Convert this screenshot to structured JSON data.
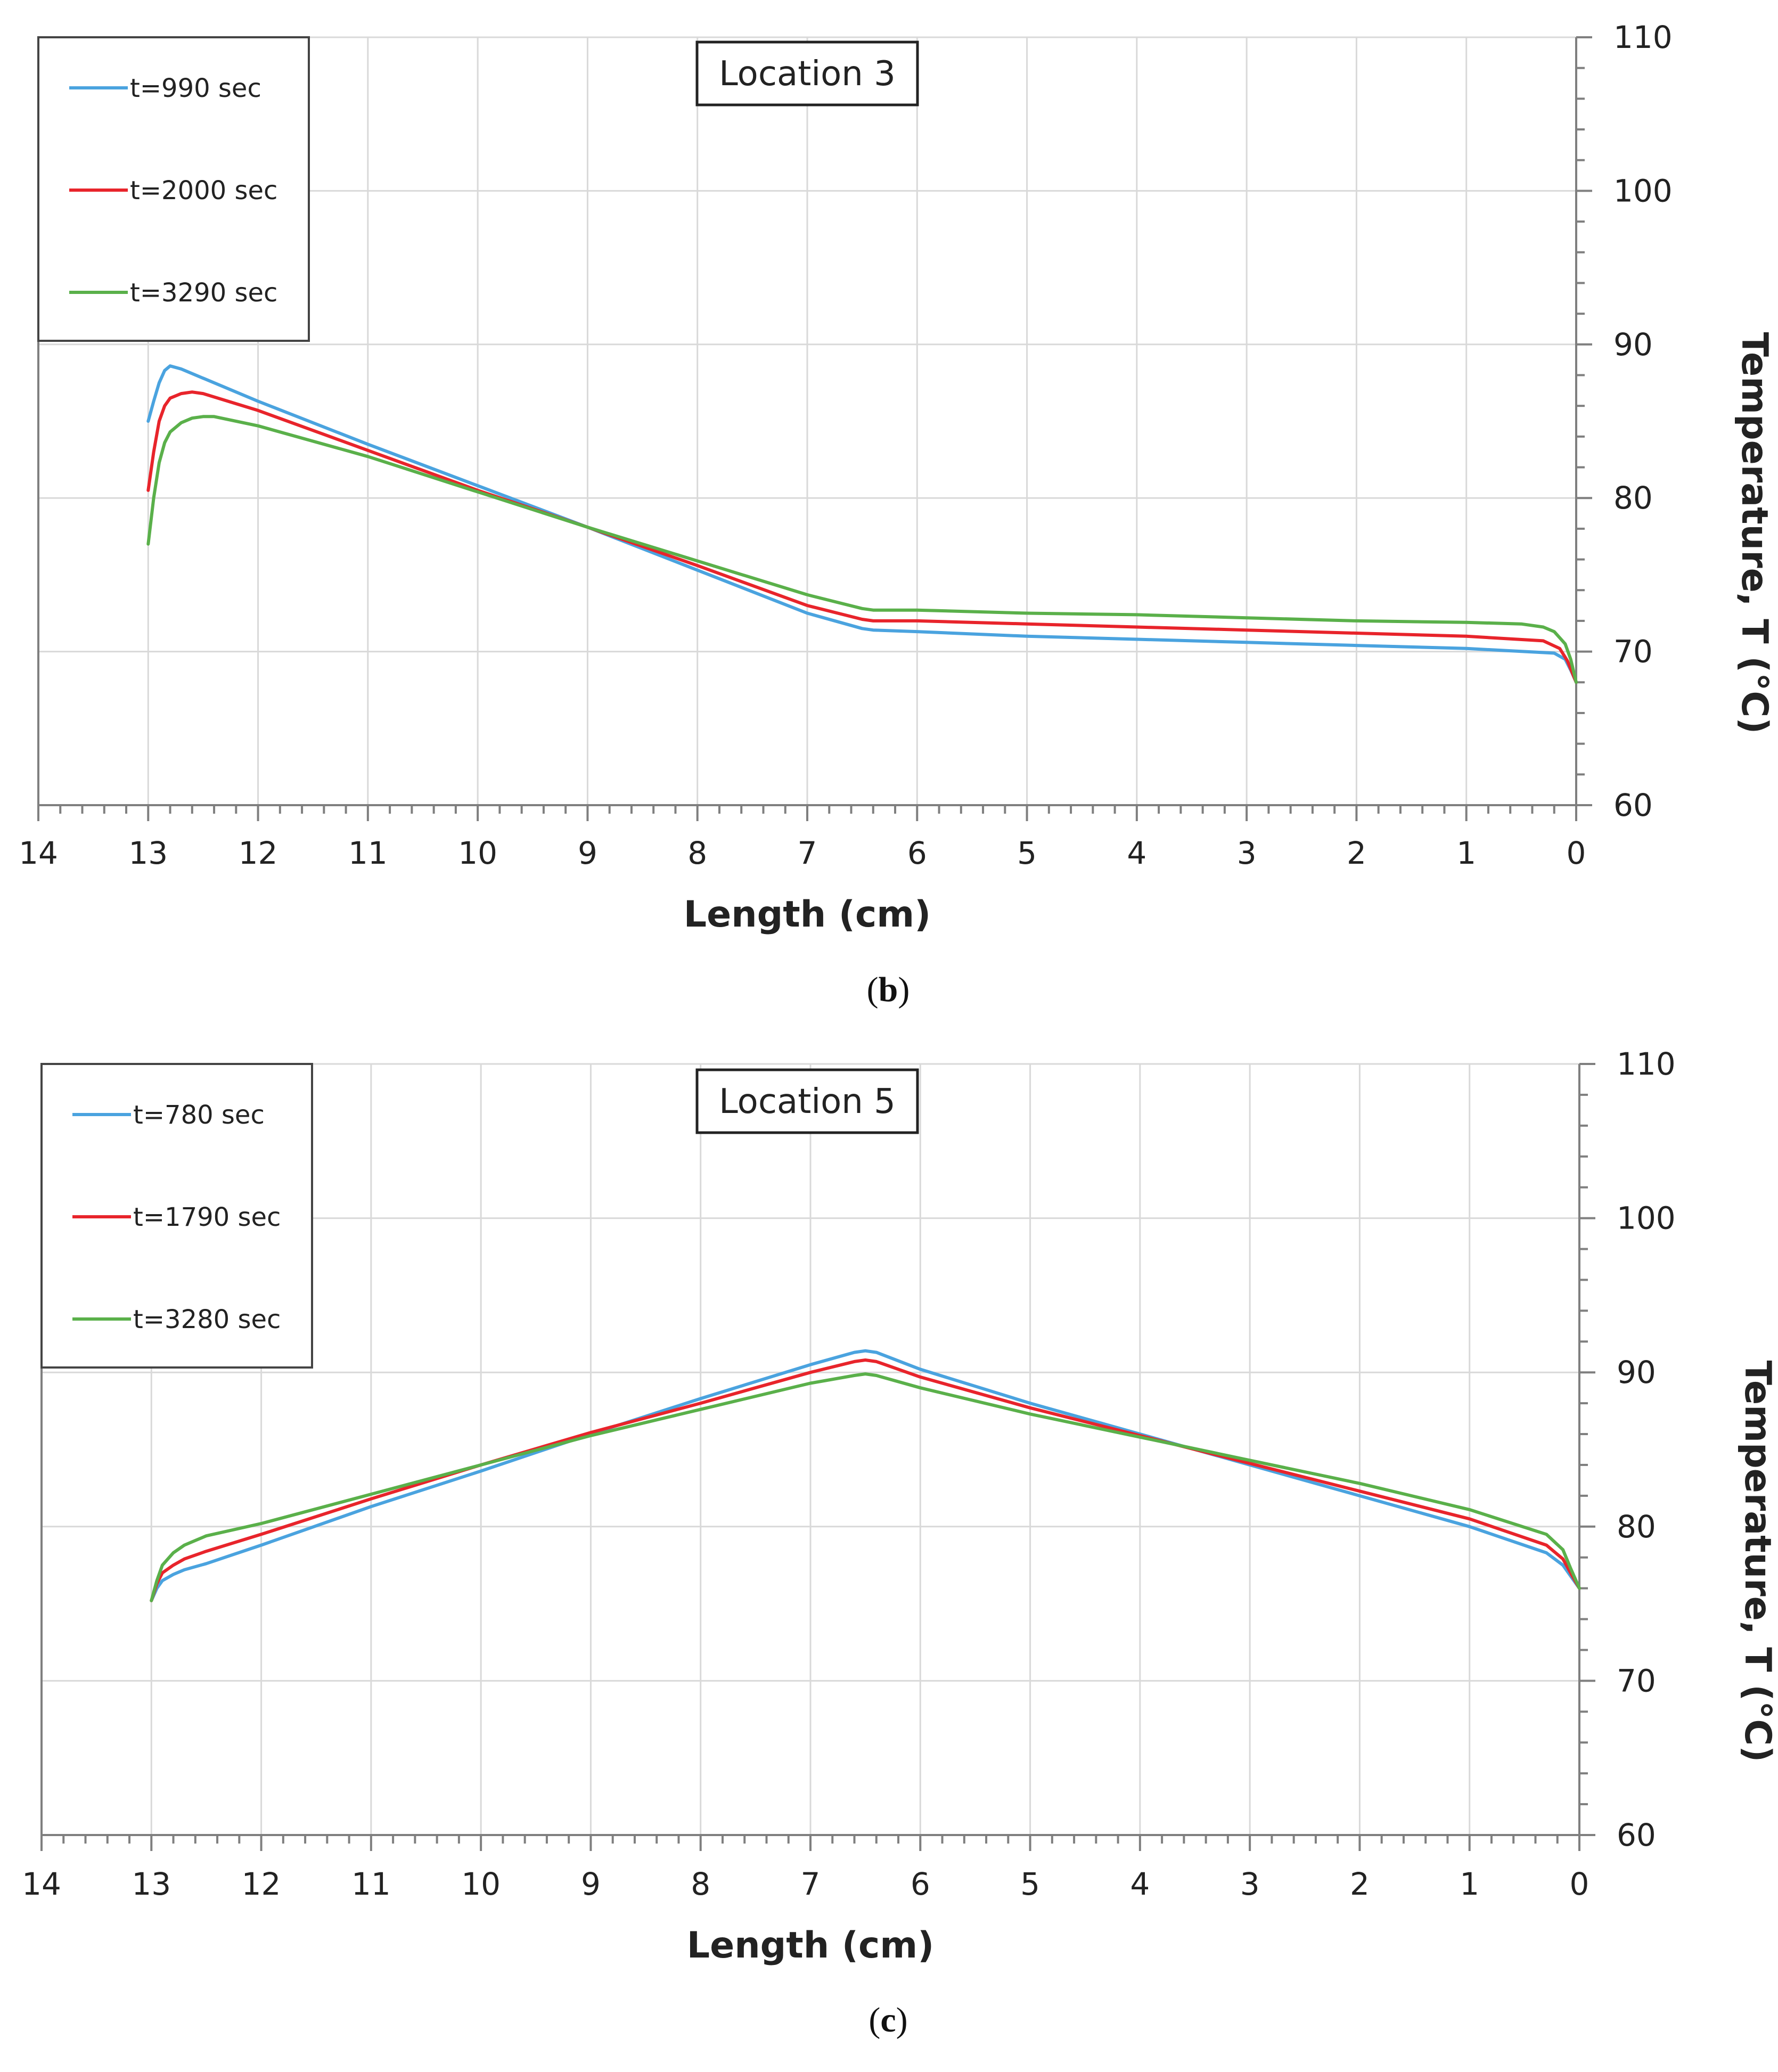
{
  "chart_data": [
    {
      "type": "line",
      "title": "Location 3",
      "xlabel": "Length (cm)",
      "ylabel": "Temperature, T (°C)",
      "caption_letter": "b",
      "xlim": [
        14,
        0
      ],
      "ylim": [
        60,
        110
      ],
      "x_ticks": [
        "14",
        "13",
        "12",
        "11",
        "10",
        "9",
        "8",
        "7",
        "6",
        "5",
        "4",
        "3",
        "2",
        "1",
        "0"
      ],
      "y_ticks": [
        "60",
        "70",
        "80",
        "90",
        "100",
        "110"
      ],
      "grid": true,
      "legend_position": "top-left",
      "series": [
        {
          "name": "t=990 sec",
          "color": "#4aa3df",
          "x": [
            13.0,
            12.95,
            12.9,
            12.85,
            12.8,
            12.7,
            12.5,
            12.0,
            11.0,
            10.0,
            9.0,
            8.0,
            7.0,
            6.5,
            6.4,
            6.0,
            5.0,
            4.0,
            3.0,
            2.0,
            1.0,
            0.2,
            0.1,
            0.05,
            0.0
          ],
          "y": [
            85.0,
            86.3,
            87.5,
            88.3,
            88.6,
            88.4,
            87.8,
            86.3,
            83.5,
            80.8,
            78.1,
            75.3,
            72.5,
            71.5,
            71.4,
            71.3,
            71.0,
            70.8,
            70.6,
            70.4,
            70.2,
            69.9,
            69.5,
            68.8,
            68.0
          ]
        },
        {
          "name": "t=2000 sec",
          "color": "#e8242b",
          "x": [
            13.0,
            12.95,
            12.9,
            12.85,
            12.8,
            12.7,
            12.6,
            12.5,
            12.0,
            11.0,
            10.0,
            9.0,
            8.0,
            7.0,
            6.5,
            6.4,
            6.0,
            5.0,
            4.0,
            3.0,
            2.0,
            1.0,
            0.3,
            0.15,
            0.08,
            0.0
          ],
          "y": [
            80.5,
            83.0,
            85.0,
            86.0,
            86.5,
            86.8,
            86.9,
            86.8,
            85.7,
            83.1,
            80.5,
            78.1,
            75.6,
            73.0,
            72.1,
            72.0,
            72.0,
            71.8,
            71.6,
            71.4,
            71.2,
            71.0,
            70.7,
            70.2,
            69.4,
            68.0
          ]
        },
        {
          "name": "t=3290 sec",
          "color": "#5ab04a",
          "x": [
            13.0,
            12.95,
            12.9,
            12.85,
            12.8,
            12.7,
            12.6,
            12.5,
            12.4,
            12.0,
            11.0,
            10.0,
            9.0,
            8.0,
            7.0,
            6.5,
            6.4,
            6.0,
            5.0,
            4.0,
            3.0,
            2.0,
            1.0,
            0.5,
            0.3,
            0.2,
            0.1,
            0.05,
            0.0
          ],
          "y": [
            77.0,
            80.0,
            82.3,
            83.6,
            84.3,
            84.9,
            85.2,
            85.3,
            85.3,
            84.7,
            82.7,
            80.4,
            78.1,
            75.9,
            73.7,
            72.8,
            72.7,
            72.7,
            72.5,
            72.4,
            72.2,
            72.0,
            71.9,
            71.8,
            71.6,
            71.3,
            70.5,
            69.5,
            68.0
          ]
        }
      ]
    },
    {
      "type": "line",
      "title": "Location 5",
      "xlabel": "Length (cm)",
      "ylabel": "Temperature, T (°C)",
      "caption_letter": "c",
      "xlim": [
        14,
        0
      ],
      "ylim": [
        60,
        110
      ],
      "x_ticks": [
        "14",
        "13",
        "12",
        "11",
        "10",
        "9",
        "8",
        "7",
        "6",
        "5",
        "4",
        "3",
        "2",
        "1",
        "0"
      ],
      "y_ticks": [
        "60",
        "70",
        "80",
        "90",
        "100",
        "110"
      ],
      "grid": true,
      "legend_position": "top-left",
      "series": [
        {
          "name": "t=780 sec",
          "color": "#4aa3df",
          "x": [
            13.0,
            12.95,
            12.9,
            12.8,
            12.7,
            12.5,
            12.0,
            11.0,
            10.0,
            9.0,
            8.0,
            7.0,
            6.6,
            6.5,
            6.4,
            6.0,
            5.0,
            4.0,
            3.0,
            2.0,
            1.0,
            0.3,
            0.15,
            0.08,
            0.0
          ],
          "y": [
            75.2,
            76.0,
            76.5,
            76.9,
            77.2,
            77.6,
            78.8,
            81.3,
            83.6,
            86.0,
            88.3,
            90.5,
            91.3,
            91.4,
            91.3,
            90.2,
            88.0,
            86.0,
            84.0,
            82.0,
            80.0,
            78.3,
            77.5,
            76.8,
            76.0
          ]
        },
        {
          "name": "t=1790 sec",
          "color": "#e8242b",
          "x": [
            13.0,
            12.95,
            12.9,
            12.8,
            12.7,
            12.5,
            12.0,
            11.0,
            10.0,
            9.0,
            8.0,
            7.0,
            6.6,
            6.5,
            6.4,
            6.0,
            5.0,
            4.0,
            3.0,
            2.0,
            1.0,
            0.3,
            0.15,
            0.08,
            0.0
          ],
          "y": [
            75.2,
            76.3,
            77.0,
            77.5,
            77.9,
            78.4,
            79.5,
            81.8,
            84.0,
            86.1,
            88.0,
            90.0,
            90.7,
            90.8,
            90.7,
            89.7,
            87.7,
            85.9,
            84.1,
            82.3,
            80.5,
            78.8,
            77.9,
            77.0,
            76.0
          ]
        },
        {
          "name": "t=3280 sec",
          "color": "#5ab04a",
          "x": [
            13.0,
            12.95,
            12.9,
            12.8,
            12.7,
            12.6,
            12.5,
            12.0,
            11.0,
            10.0,
            9.0,
            8.0,
            7.0,
            6.6,
            6.5,
            6.4,
            6.0,
            5.0,
            4.0,
            3.0,
            2.0,
            1.0,
            0.3,
            0.15,
            0.08,
            0.0
          ],
          "y": [
            75.2,
            76.5,
            77.5,
            78.3,
            78.8,
            79.1,
            79.4,
            80.2,
            82.1,
            84.0,
            85.9,
            87.6,
            89.3,
            89.8,
            89.9,
            89.8,
            89.0,
            87.3,
            85.8,
            84.3,
            82.8,
            81.1,
            79.5,
            78.5,
            77.3,
            76.0
          ]
        }
      ]
    }
  ]
}
